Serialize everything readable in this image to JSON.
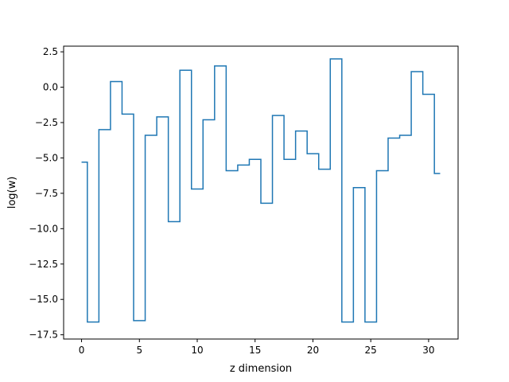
{
  "chart_data": {
    "type": "line",
    "drawstyle": "steps-mid",
    "title": "",
    "xlabel": "z dimension",
    "ylabel": "log(w)",
    "xlim": [
      -1.55,
      32.55
    ],
    "ylim": [
      -17.8,
      2.9
    ],
    "grid": false,
    "xticks": [
      0,
      5,
      10,
      15,
      20,
      25,
      30
    ],
    "xtick_labels": [
      "0",
      "5",
      "10",
      "15",
      "20",
      "25",
      "30"
    ],
    "yticks": [
      2.5,
      0.0,
      -2.5,
      -5.0,
      -7.5,
      -10.0,
      -12.5,
      -15.0,
      -17.5
    ],
    "ytick_labels": [
      "2.5",
      "0.0",
      "−2.5",
      "−5.0",
      "−7.5",
      "−10.0",
      "−12.5",
      "−15.0",
      "−17.5"
    ],
    "series": [
      {
        "color": "#1f77b4",
        "x": [
          0,
          1,
          2,
          3,
          4,
          5,
          6,
          7,
          8,
          9,
          10,
          11,
          12,
          13,
          14,
          15,
          16,
          17,
          18,
          19,
          20,
          21,
          22,
          23,
          24,
          25,
          26,
          27,
          28,
          29,
          30,
          31
        ],
        "values": [
          -5.3,
          -16.6,
          -3.0,
          0.4,
          -1.9,
          -16.5,
          -3.4,
          -2.1,
          -9.5,
          1.2,
          -7.2,
          -2.3,
          1.5,
          -5.9,
          -5.5,
          -5.1,
          -8.2,
          -2.0,
          -5.1,
          -3.1,
          -4.7,
          -5.8,
          2.0,
          -16.6,
          -7.1,
          -16.6,
          -5.9,
          -3.6,
          -3.4,
          1.1,
          -0.5,
          -6.1
        ]
      }
    ]
  }
}
